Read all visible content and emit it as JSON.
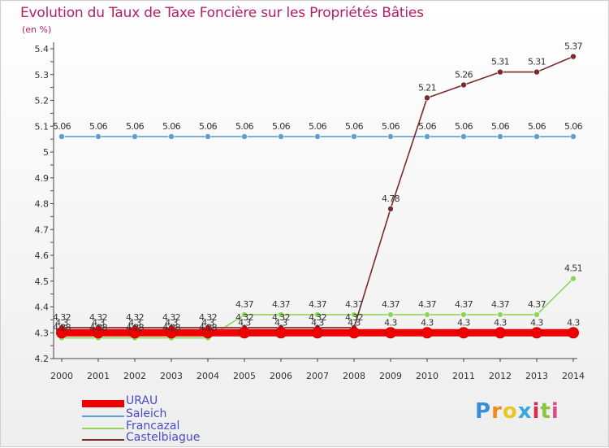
{
  "title": "Evolution du Taux de Taxe Foncière sur les Propriétés Bâties",
  "unit": "(en %)",
  "logo": {
    "text": "Proxiti",
    "letter_colors": [
      "#3a8fd8",
      "#f08a1c",
      "#e8c820",
      "#3aa8e0",
      "#d82c4a",
      "#8cc43c",
      "#e04a8a"
    ]
  },
  "chart_data": {
    "type": "line",
    "title": "Evolution du Taux de Taxe Foncière sur les Propriétés Bâties",
    "ylabel": "(en %)",
    "xlabel": "",
    "x": [
      "2000",
      "2001",
      "2002",
      "2003",
      "2004",
      "2005",
      "2006",
      "2007",
      "2008",
      "2009",
      "2010",
      "2011",
      "2012",
      "2013",
      "2014"
    ],
    "ylim": [
      4.2,
      5.4
    ],
    "yticks": [
      "4.2",
      "4.3",
      "4.4",
      "4.5",
      "4.6",
      "4.7",
      "4.8",
      "4.9",
      "5",
      "5.1",
      "5.2",
      "5.3",
      "5.4"
    ],
    "grid": false,
    "legend_position": "bottom-left",
    "series": [
      {
        "name": "URAU",
        "color": "#ee0000",
        "values": [
          4.3,
          4.3,
          4.3,
          4.3,
          4.3,
          4.3,
          4.3,
          4.3,
          4.3,
          4.3,
          4.3,
          4.3,
          4.3,
          4.3,
          4.3
        ],
        "labels": [
          "4.3",
          "4.3",
          "4.3",
          "4.3",
          "4.3",
          "4.3",
          "4.3",
          "4.3",
          "4.3",
          "4.3",
          "4.3",
          "4.3",
          "4.3",
          "4.3",
          "4.3"
        ]
      },
      {
        "name": "Saleich",
        "color": "#5f9ed1",
        "values": [
          5.06,
          5.06,
          5.06,
          5.06,
          5.06,
          5.06,
          5.06,
          5.06,
          5.06,
          5.06,
          5.06,
          5.06,
          5.06,
          5.06,
          5.06
        ],
        "labels": [
          "5.06",
          "5.06",
          "5.06",
          "5.06",
          "5.06",
          "5.06",
          "5.06",
          "5.06",
          "5.06",
          "5.06",
          "5.06",
          "5.06",
          "5.06",
          "5.06",
          "5.06"
        ]
      },
      {
        "name": "Francazal",
        "color": "#8fd45a",
        "values": [
          4.28,
          4.28,
          4.28,
          4.28,
          4.28,
          4.37,
          4.37,
          4.37,
          4.37,
          4.37,
          4.37,
          4.37,
          4.37,
          4.37,
          4.51
        ],
        "labels": [
          "4.28",
          "4.28",
          "4.28",
          "4.28",
          "4.28",
          "4.37",
          "4.37",
          "4.37",
          "4.37",
          "4.37",
          "4.37",
          "4.37",
          "4.37",
          "4.37",
          "4.51"
        ]
      },
      {
        "name": "Castelbiague",
        "color": "#7a2a2a",
        "values": [
          4.32,
          4.32,
          4.32,
          4.32,
          4.32,
          4.32,
          4.32,
          4.32,
          4.32,
          4.78,
          5.21,
          5.26,
          5.31,
          5.31,
          5.37
        ],
        "labels": [
          "4.32",
          "4.32",
          "4.32",
          "4.32",
          "4.32",
          "4.32",
          "4.32",
          "4.32",
          "4.32",
          "4.78",
          "5.21",
          "5.26",
          "5.31",
          "5.31",
          "5.37"
        ]
      }
    ]
  }
}
